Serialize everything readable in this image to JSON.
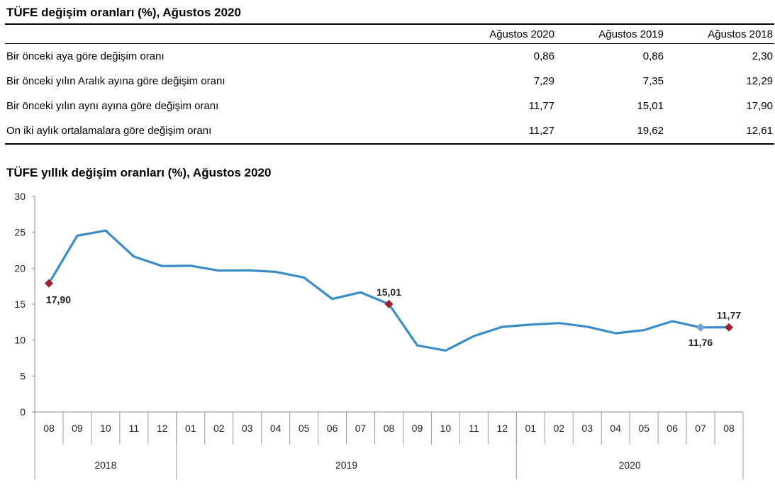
{
  "table": {
    "title": "TÜFE değişim oranları (%), Ağustos 2020",
    "headers": [
      "",
      "Ağustos 2020",
      "Ağustos 2019",
      "Ağustos 2018"
    ],
    "rows": [
      {
        "label": "Bir önceki aya göre değişim oranı",
        "values": [
          "0,86",
          "0,86",
          "2,30"
        ]
      },
      {
        "label": "Bir önceki yılın Aralık ayına göre değişim oranı",
        "values": [
          "7,29",
          "7,35",
          "12,29"
        ]
      },
      {
        "label": "Bir önceki yılın aynı ayına göre değişim oranı",
        "values": [
          "11,77",
          "15,01",
          "17,90"
        ]
      },
      {
        "label": "On iki aylık ortalamalara göre değişim oranı",
        "values": [
          "11,27",
          "19,62",
          "12,61"
        ]
      }
    ]
  },
  "chart_title": "TÜFE yıllık değişim oranları (%), Ağustos 2020",
  "chart_data": {
    "type": "line",
    "x": [
      "08",
      "09",
      "10",
      "11",
      "12",
      "01",
      "02",
      "03",
      "04",
      "05",
      "06",
      "07",
      "08",
      "09",
      "10",
      "11",
      "12",
      "01",
      "02",
      "03",
      "04",
      "05",
      "06",
      "07",
      "08"
    ],
    "groups": [
      {
        "label": "2018",
        "start": 0,
        "count": 5
      },
      {
        "label": "2019",
        "start": 5,
        "count": 12
      },
      {
        "label": "2020",
        "start": 17,
        "count": 8
      }
    ],
    "series": [
      {
        "values": [
          17.9,
          24.52,
          25.24,
          21.62,
          20.3,
          20.35,
          19.67,
          19.71,
          19.5,
          18.71,
          15.72,
          16.65,
          15.01,
          9.26,
          8.55,
          10.56,
          11.84,
          12.15,
          12.37,
          11.86,
          10.94,
          11.39,
          12.62,
          11.76,
          11.77
        ]
      }
    ],
    "ylim": [
      0,
      30
    ],
    "yticks": [
      0,
      5,
      10,
      15,
      20,
      25,
      30
    ],
    "line_color": "#3a8cc6",
    "marker_color": "#9b2233",
    "highlight_marker_color": "#6fa3d8",
    "annotations": [
      {
        "index": 0,
        "text": "17,90",
        "marker": "dark"
      },
      {
        "index": 12,
        "text": "15,01",
        "marker": "dark"
      },
      {
        "index": 23,
        "text": "11,76",
        "marker": "light"
      },
      {
        "index": 24,
        "text": "11,77",
        "marker": "dark"
      }
    ]
  }
}
